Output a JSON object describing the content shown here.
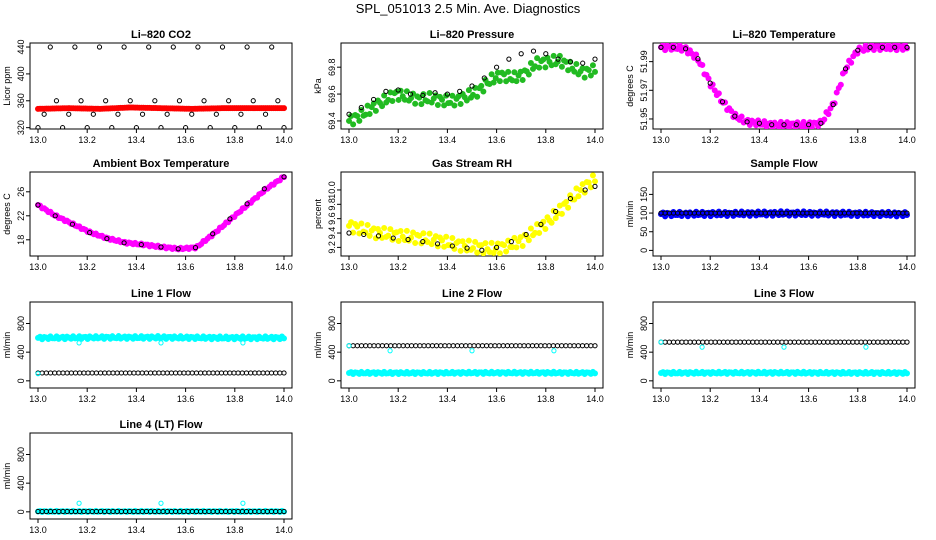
{
  "figure_title": "SPL_051013  2.5 Min. Ave. Diagnostics",
  "colors": {
    "red": "#ff0000",
    "green": "#22bb22",
    "magenta": "#ff00ff",
    "yellow": "#ffff00",
    "blue": "#0000ff",
    "cyan": "#00ffff",
    "black": "#000000"
  },
  "chart_data": [
    {
      "id": "co2",
      "type": "scatter",
      "title": "Li–820 CO2",
      "ylabel": "Licor ppm",
      "xlim": [
        13.0,
        14.0
      ],
      "ylim": [
        318,
        446
      ],
      "xticks": [
        "13.0",
        "13.2",
        "13.4",
        "13.6",
        "13.8",
        "14.0"
      ],
      "yticks": [
        "320",
        "360",
        "400",
        "440"
      ],
      "ytick_values": [
        320,
        360,
        400,
        440
      ],
      "series": [
        {
          "name": "colored",
          "color": "red",
          "kind": "dense",
          "x_start": 13.0,
          "x_end": 14.0,
          "y": [
            348,
            349,
            348,
            350,
            349,
            348,
            349,
            349,
            349
          ]
        },
        {
          "name": "black",
          "color": "black",
          "kind": "open",
          "marker_step": 0.0333,
          "x": [
            13.0,
            13.025,
            13.05,
            13.075,
            13.1,
            13.125,
            13.15,
            13.175,
            13.2,
            13.225,
            13.25,
            13.275,
            13.3,
            13.325,
            13.35,
            13.375,
            13.4,
            13.425,
            13.45,
            13.475,
            13.5,
            13.525,
            13.55,
            13.575,
            13.6,
            13.625,
            13.65,
            13.675,
            13.7,
            13.725,
            13.75,
            13.775,
            13.8,
            13.825,
            13.85,
            13.875,
            13.9,
            13.925,
            13.95,
            13.975,
            14.0
          ],
          "y": [
            320,
            340,
            440,
            360,
            320,
            340,
            440,
            360,
            320,
            340,
            440,
            360,
            320,
            340,
            440,
            360,
            320,
            340,
            440,
            360,
            320,
            340,
            440,
            360,
            320,
            340,
            440,
            360,
            320,
            340,
            440,
            360,
            320,
            340,
            440,
            360,
            320,
            340,
            440,
            360,
            320
          ]
        }
      ]
    },
    {
      "id": "pressure",
      "type": "scatter",
      "title": "Li–820 Pressure",
      "ylabel": "kPa",
      "xlim": [
        13.0,
        14.0
      ],
      "ylim": [
        69.34,
        69.98
      ],
      "xticks": [
        "13.0",
        "13.2",
        "13.4",
        "13.6",
        "13.8",
        "14.0"
      ],
      "yticks": [
        "69.4",
        "69.6",
        "69.8"
      ],
      "ytick_values": [
        69.4,
        69.6,
        69.8
      ],
      "series": [
        {
          "name": "colored",
          "color": "green",
          "kind": "dense",
          "x_start": 13.0,
          "x_end": 14.0,
          "band": 0.04,
          "y": [
            69.4,
            69.44,
            69.5,
            69.55,
            69.6,
            69.58,
            69.56,
            69.57,
            69.55,
            69.55,
            69.58,
            69.62,
            69.7,
            69.74,
            69.72,
            69.75,
            69.83,
            69.84,
            69.85,
            69.8,
            69.76,
            69.78
          ]
        },
        {
          "name": "black",
          "color": "black",
          "kind": "open",
          "x": [
            13.0,
            13.05,
            13.1,
            13.15,
            13.2,
            13.25,
            13.3,
            13.35,
            13.4,
            13.45,
            13.5,
            13.55,
            13.6,
            13.65,
            13.7,
            13.75,
            13.8,
            13.85,
            13.9,
            13.95,
            14.0
          ],
          "y": [
            69.45,
            69.5,
            69.56,
            69.62,
            69.63,
            69.6,
            69.59,
            69.61,
            69.6,
            69.62,
            69.66,
            69.72,
            69.8,
            69.86,
            69.9,
            69.92,
            69.9,
            69.86,
            69.84,
            69.83,
            69.86
          ]
        }
      ]
    },
    {
      "id": "licortemp",
      "type": "scatter",
      "title": "Li–820 Temperature",
      "ylabel": "degrees C",
      "xlim": [
        13.0,
        14.0
      ],
      "ylim": [
        51.943,
        52.003
      ],
      "xticks": [
        "13.0",
        "13.2",
        "13.4",
        "13.6",
        "13.8",
        "14.0"
      ],
      "yticks": [
        "51.95",
        "51.97",
        "51.99"
      ],
      "ytick_values": [
        51.95,
        51.97,
        51.99
      ],
      "series": [
        {
          "name": "colored",
          "color": "magenta",
          "kind": "dense",
          "x_start": 13.0,
          "x_end": 14.0,
          "band": 0.002,
          "y": [
            52.0,
            52.0,
            51.999,
            51.992,
            51.975,
            51.962,
            51.952,
            51.948,
            51.947,
            51.946,
            51.946,
            51.946,
            51.946,
            51.947,
            51.96,
            51.985,
            51.998,
            52.0,
            52.0,
            52.0,
            52.0
          ]
        },
        {
          "name": "black",
          "color": "black",
          "kind": "open",
          "x": [
            13.0,
            13.05,
            13.1,
            13.15,
            13.2,
            13.25,
            13.3,
            13.35,
            13.4,
            13.45,
            13.5,
            13.55,
            13.6,
            13.65,
            13.7,
            13.75,
            13.8,
            13.85,
            13.9,
            13.95,
            14.0
          ],
          "y": [
            52.0,
            52.0,
            51.999,
            51.992,
            51.975,
            51.962,
            51.952,
            51.948,
            51.947,
            51.946,
            51.946,
            51.946,
            51.946,
            51.947,
            51.96,
            51.985,
            51.998,
            52.0,
            52.0,
            52.0,
            52.0
          ]
        }
      ]
    },
    {
      "id": "ambient",
      "type": "scatter",
      "title": "Ambient Box Temperature",
      "ylabel": "degrees C",
      "xlim": [
        13.0,
        14.0
      ],
      "ylim": [
        15.3,
        29.3
      ],
      "xticks": [
        "13.0",
        "13.2",
        "13.4",
        "13.6",
        "13.8",
        "14.0"
      ],
      "yticks": [
        "18",
        "22",
        "26"
      ],
      "ytick_values": [
        18,
        22,
        26
      ],
      "series": [
        {
          "name": "colored",
          "color": "magenta",
          "kind": "dense",
          "x_start": 13.0,
          "x_end": 14.0,
          "band": 0.15,
          "y": [
            23.8,
            22.0,
            20.6,
            19.2,
            18.2,
            17.5,
            17.2,
            16.8,
            16.5,
            16.7,
            19.0,
            21.5,
            24.0,
            26.5,
            28.5
          ]
        },
        {
          "name": "black",
          "color": "black",
          "kind": "open",
          "x": [
            13.0,
            13.07,
            13.14,
            13.21,
            13.28,
            13.35,
            13.42,
            13.5,
            13.57,
            13.64,
            13.71,
            13.78,
            13.85,
            13.92,
            14.0
          ],
          "y": [
            23.8,
            22.0,
            20.6,
            19.2,
            18.2,
            17.5,
            17.2,
            16.8,
            16.5,
            16.7,
            19.0,
            21.5,
            24.0,
            26.5,
            28.5
          ]
        }
      ]
    },
    {
      "id": "rh",
      "type": "scatter",
      "title": "Gas Stream RH",
      "ylabel": "percent",
      "xlim": [
        13.0,
        14.0
      ],
      "ylim": [
        9.08,
        10.25
      ],
      "xticks": [
        "13.0",
        "13.2",
        "13.4",
        "13.6",
        "13.8",
        "14.0"
      ],
      "yticks": [
        "9.2",
        "9.4",
        "9.6",
        "9.8",
        "10.0"
      ],
      "ytick_values": [
        9.2,
        9.4,
        9.6,
        9.8,
        10.0
      ],
      "series": [
        {
          "name": "colored",
          "color": "yellow",
          "kind": "dense",
          "x_start": 13.0,
          "x_end": 14.0,
          "band": 0.08,
          "y": [
            9.5,
            9.45,
            9.4,
            9.38,
            9.35,
            9.33,
            9.3,
            9.26,
            9.22,
            9.2,
            9.18,
            9.22,
            9.3,
            9.45,
            9.6,
            9.8,
            10.0,
            10.15
          ]
        },
        {
          "name": "black",
          "color": "black",
          "kind": "open",
          "x": [
            13.0,
            13.06,
            13.12,
            13.18,
            13.24,
            13.3,
            13.36,
            13.42,
            13.48,
            13.54,
            13.6,
            13.66,
            13.72,
            13.78,
            13.84,
            13.9,
            13.96,
            14.0
          ],
          "y": [
            9.4,
            9.38,
            9.36,
            9.33,
            9.31,
            9.28,
            9.25,
            9.22,
            9.19,
            9.16,
            9.2,
            9.28,
            9.38,
            9.52,
            9.7,
            9.88,
            10.0,
            10.05
          ]
        }
      ]
    },
    {
      "id": "sampleflow",
      "type": "scatter",
      "title": "Sample Flow",
      "ylabel": "ml/min",
      "xlim": [
        13.0,
        14.0
      ],
      "ylim": [
        -15,
        210
      ],
      "xticks": [
        "13.0",
        "13.2",
        "13.4",
        "13.6",
        "13.8",
        "14.0"
      ],
      "yticks": [
        "0",
        "50",
        "100",
        "150"
      ],
      "ytick_values": [
        0,
        50,
        100,
        150
      ],
      "series": [
        {
          "name": "colored",
          "color": "blue",
          "kind": "dense",
          "x_start": 13.0,
          "x_end": 14.0,
          "band": 6,
          "y": [
            97,
            98,
            99,
            98,
            97
          ]
        },
        {
          "name": "black",
          "color": "black",
          "kind": "open",
          "x_start": 13.0,
          "x_end": 14.0,
          "count": 60,
          "y_const": 100
        }
      ]
    },
    {
      "id": "line1",
      "type": "scatter",
      "title": "Line 1 Flow",
      "ylabel": "ml/min",
      "xlim": [
        13.0,
        14.0
      ],
      "ylim": [
        -100,
        1100
      ],
      "xticks": [
        "13.0",
        "13.2",
        "13.4",
        "13.6",
        "13.8",
        "14.0"
      ],
      "yticks": [
        "0",
        "400",
        "800"
      ],
      "ytick_values": [
        0,
        400,
        800
      ],
      "series": [
        {
          "name": "colored",
          "color": "cyan",
          "kind": "dense",
          "x_start": 13.0,
          "x_end": 14.0,
          "band": 20,
          "y": [
            600,
            605,
            605,
            600,
            600
          ]
        },
        {
          "name": "black",
          "color": "black",
          "kind": "open",
          "x_start": 13.0,
          "x_end": 14.0,
          "count": 60,
          "y_const": 110
        },
        {
          "name": "outliers",
          "color": "cyan",
          "kind": "open",
          "x": [
            13.0,
            13.167,
            13.5,
            13.833
          ],
          "y": [
            100,
            530,
            530,
            530
          ]
        }
      ]
    },
    {
      "id": "line2",
      "type": "scatter",
      "title": "Line 2 Flow",
      "ylabel": "ml/min",
      "xlim": [
        13.0,
        14.0
      ],
      "ylim": [
        -100,
        1100
      ],
      "xticks": [
        "13.0",
        "13.2",
        "13.4",
        "13.6",
        "13.8",
        "14.0"
      ],
      "yticks": [
        "0",
        "400",
        "800"
      ],
      "ytick_values": [
        0,
        400,
        800
      ],
      "series": [
        {
          "name": "colored",
          "color": "cyan",
          "kind": "dense",
          "x_start": 13.0,
          "x_end": 14.0,
          "band": 15,
          "y": [
            110,
            110,
            112,
            112,
            110
          ]
        },
        {
          "name": "black",
          "color": "black",
          "kind": "open",
          "x_start": 13.0,
          "x_end": 14.0,
          "count": 60,
          "y_const": 490
        },
        {
          "name": "outliers",
          "color": "cyan",
          "kind": "open",
          "x": [
            13.0,
            13.167,
            13.5,
            13.833
          ],
          "y": [
            490,
            420,
            420,
            420
          ]
        }
      ]
    },
    {
      "id": "line3",
      "type": "scatter",
      "title": "Line 3 Flow",
      "ylabel": "ml/min",
      "xlim": [
        13.0,
        14.0
      ],
      "ylim": [
        -100,
        1100
      ],
      "xticks": [
        "13.0",
        "13.2",
        "13.4",
        "13.6",
        "13.8",
        "14.0"
      ],
      "yticks": [
        "0",
        "400",
        "800"
      ],
      "ytick_values": [
        0,
        400,
        800
      ],
      "series": [
        {
          "name": "colored",
          "color": "cyan",
          "kind": "dense",
          "x_start": 13.0,
          "x_end": 14.0,
          "band": 15,
          "y": [
            110,
            112,
            112,
            110,
            110
          ]
        },
        {
          "name": "black",
          "color": "black",
          "kind": "open",
          "x_start": 13.0,
          "x_end": 14.0,
          "count": 60,
          "y_const": 540
        },
        {
          "name": "outliers",
          "color": "cyan",
          "kind": "open",
          "x": [
            13.0,
            13.167,
            13.5,
            13.833
          ],
          "y": [
            540,
            470,
            470,
            470
          ]
        }
      ]
    },
    {
      "id": "line4",
      "type": "scatter",
      "title": "Line 4 (LT) Flow",
      "ylabel": "ml/min",
      "xlim": [
        13.0,
        14.0
      ],
      "ylim": [
        -100,
        1100
      ],
      "xticks": [
        "13.0",
        "13.2",
        "13.4",
        "13.6",
        "13.8",
        "14.0"
      ],
      "yticks": [
        "0",
        "400",
        "800"
      ],
      "ytick_values": [
        0,
        400,
        800
      ],
      "series": [
        {
          "name": "colored",
          "color": "cyan",
          "kind": "dense",
          "x_start": 13.0,
          "x_end": 14.0,
          "band": 8,
          "y": [
            5,
            5,
            5
          ]
        },
        {
          "name": "black",
          "color": "black",
          "kind": "open",
          "x_start": 13.0,
          "x_end": 14.0,
          "count": 60,
          "y_const": 5
        },
        {
          "name": "outliers",
          "color": "cyan",
          "kind": "open",
          "x": [
            13.167,
            13.5,
            13.833
          ],
          "y": [
            120,
            120,
            120
          ]
        }
      ]
    }
  ]
}
